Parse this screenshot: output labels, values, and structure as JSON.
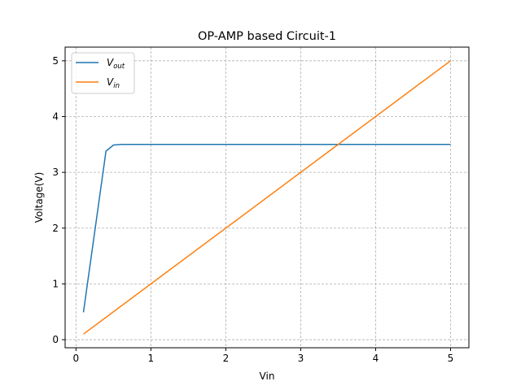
{
  "chart_data": {
    "type": "line",
    "title": "OP-AMP based Circuit-1",
    "xlabel": "Vin",
    "ylabel": "Voltage(V)",
    "xlim": [
      -0.145,
      5.245
    ],
    "ylim": [
      -0.145,
      5.245
    ],
    "xticks": [
      0,
      1,
      2,
      3,
      4,
      5
    ],
    "yticks": [
      0,
      1,
      2,
      3,
      4,
      5
    ],
    "grid": true,
    "legend_position": "top-left",
    "series": [
      {
        "name_main": "V",
        "name_sub": "out",
        "color": "#1f77b4",
        "x": [
          0.1,
          0.4,
          0.5,
          0.6,
          1.0,
          2.0,
          3.0,
          4.0,
          5.0
        ],
        "y": [
          0.49,
          3.38,
          3.49,
          3.5,
          3.5,
          3.5,
          3.5,
          3.5,
          3.5
        ]
      },
      {
        "name_main": "V",
        "name_sub": "in",
        "color": "#ff7f0e",
        "x": [
          0.1,
          5.0
        ],
        "y": [
          0.1,
          5.0
        ]
      }
    ]
  }
}
